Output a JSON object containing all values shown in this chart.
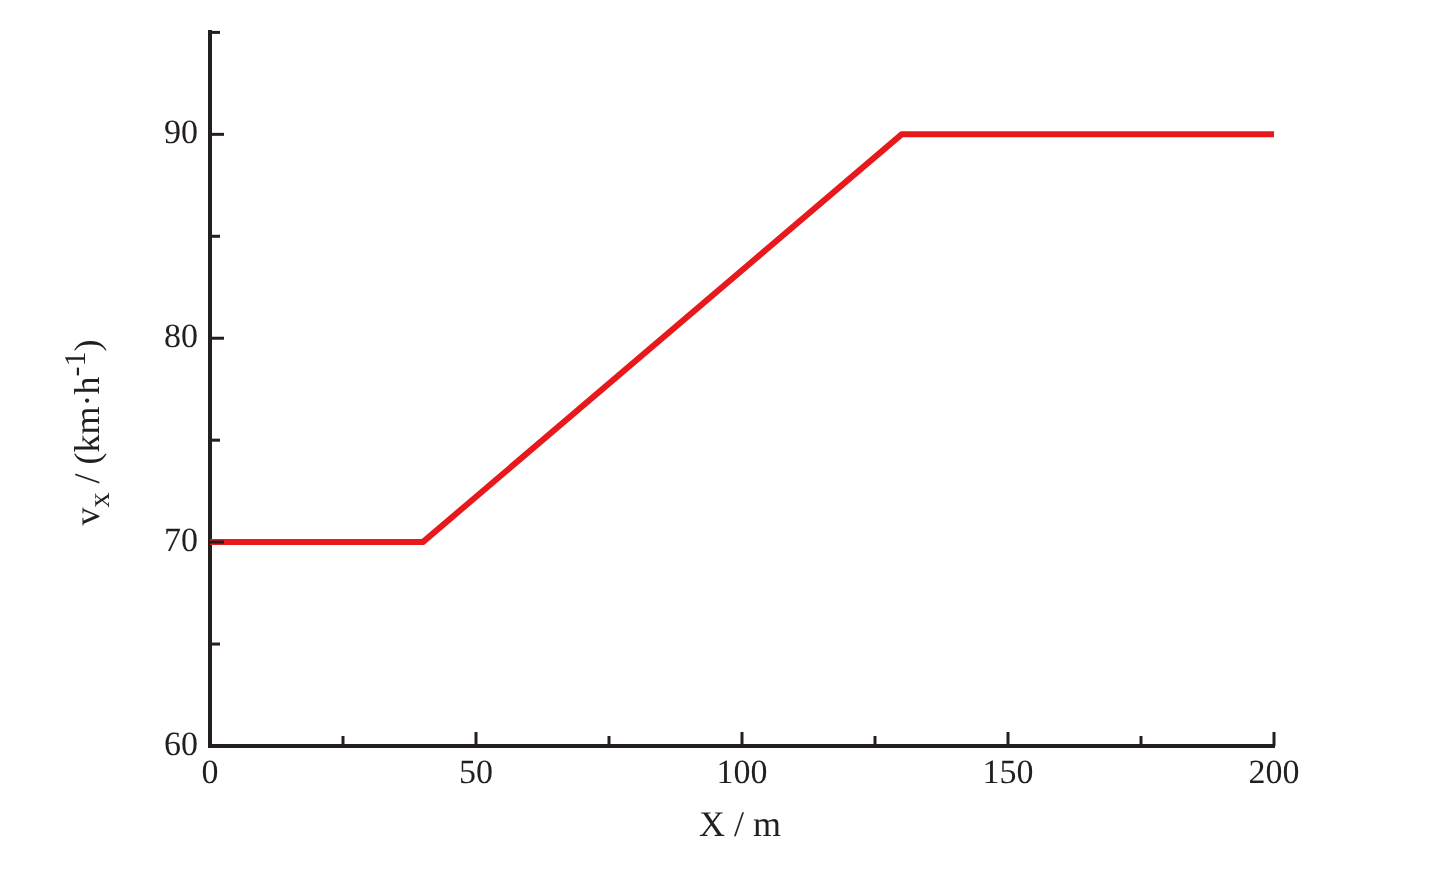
{
  "chart_data": {
    "type": "line",
    "xlabel": "X / m",
    "ylabel": "v$_{x}$ / (km·h$^{-1}$)",
    "x": [
      0,
      40,
      130,
      200
    ],
    "series": [
      {
        "color": "#e8191c",
        "values": [
          70,
          70,
          90,
          90
        ]
      }
    ],
    "xlim": [
      0,
      200
    ],
    "xticks": [
      0,
      {
        "value": 25,
        "label": null
      },
      50,
      {
        "value": 75,
        "label": null
      },
      100,
      {
        "value": 125,
        "label": null
      },
      150,
      {
        "value": 175,
        "label": null
      },
      200
    ],
    "ylim": [
      60,
      95
    ],
    "yticks": [
      60,
      {
        "value": 65,
        "label": null
      },
      70,
      {
        "value": 75,
        "label": null
      },
      80,
      {
        "value": 85,
        "label": null
      },
      90,
      {
        "value": 95,
        "label": null
      }
    ],
    "grid": false,
    "legend": false,
    "marker": "none",
    "line_style": "solid"
  }
}
